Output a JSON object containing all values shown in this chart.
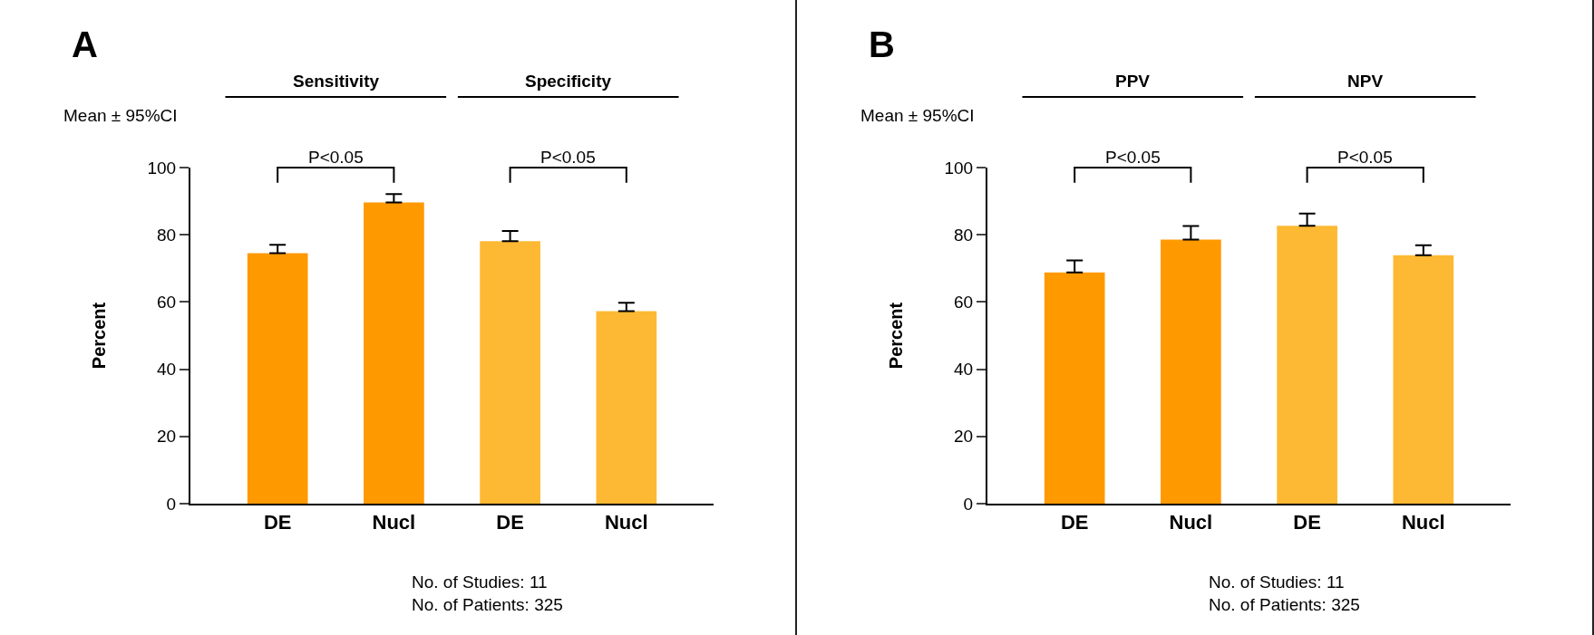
{
  "chart_data": [
    {
      "type": "bar",
      "title": "A",
      "ylabel": "Percent",
      "categories": [
        "DE",
        "Nucl",
        "DE",
        "Nucl"
      ],
      "values": [
        74.5,
        89.6,
        78.1,
        57.3
      ],
      "colors": [
        "#ff9900",
        "#ff9900",
        "#fdb933",
        "#fdb933"
      ],
      "errors": [
        [
          74.5,
          77
        ],
        [
          89.6,
          92.1
        ],
        [
          78.1,
          81.1
        ],
        [
          57.3,
          59.8
        ]
      ],
      "ylim": [
        0,
        100
      ],
      "yticks": [
        0,
        20,
        40,
        60,
        80,
        100
      ],
      "annotations": [
        "Mean ± 95%CI",
        "Sensitivity",
        "Specificity",
        "P<0.05",
        "P<0.05",
        "No. of Studies: 11\nNo. of Patients: 325"
      ]
    },
    {
      "type": "bar",
      "title": "B",
      "ylabel": "Percent",
      "categories": [
        "DE",
        "Nucl",
        "DE",
        "Nucl"
      ],
      "values": [
        68.8,
        78.6,
        82.7,
        73.9
      ],
      "colors": [
        "#ff9900",
        "#ff9900",
        "#fdb933",
        "#fdb933"
      ],
      "errors": [
        [
          68.8,
          72.4
        ],
        [
          78.6,
          82.6
        ],
        [
          82.7,
          86.3
        ],
        [
          73.9,
          76.9
        ]
      ],
      "ylim": [
        0,
        100
      ],
      "yticks": [
        0,
        20,
        40,
        60,
        80,
        100
      ],
      "annotations": [
        "Mean ± 95%CI",
        "PPV",
        "NPV",
        "P<0.05",
        "P<0.05",
        "No. of Studies: 11\nNo. of Patients: 325"
      ]
    }
  ]
}
